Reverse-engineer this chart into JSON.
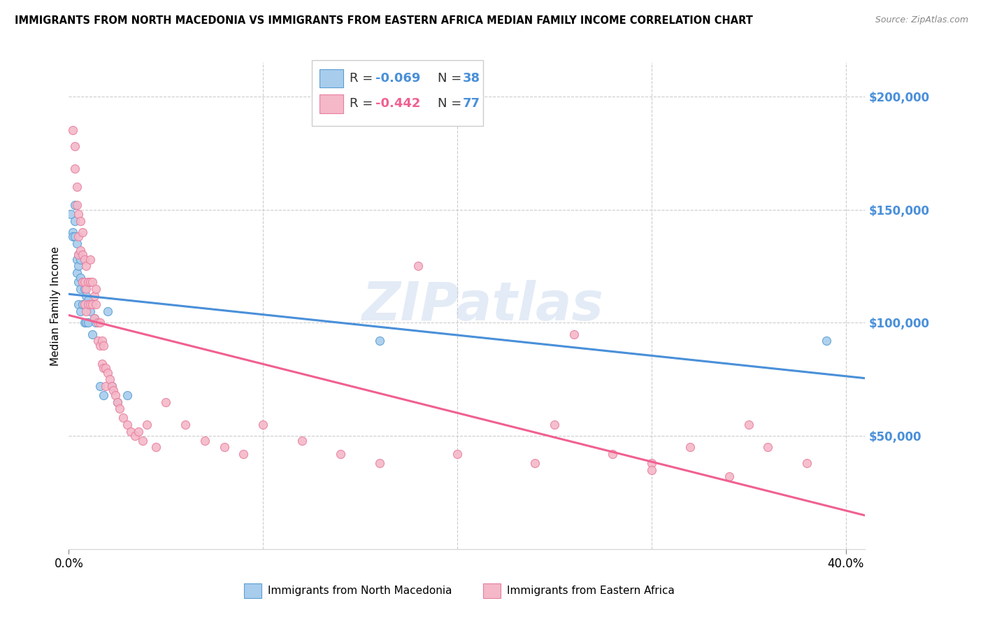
{
  "title": "IMMIGRANTS FROM NORTH MACEDONIA VS IMMIGRANTS FROM EASTERN AFRICA MEDIAN FAMILY INCOME CORRELATION CHART",
  "source": "Source: ZipAtlas.com",
  "ylabel": "Median Family Income",
  "y_tick_labels": [
    "$200,000",
    "$150,000",
    "$100,000",
    "$50,000"
  ],
  "y_tick_values": [
    200000,
    150000,
    100000,
    50000
  ],
  "y_min": 0,
  "y_max": 215000,
  "x_min": 0,
  "x_max": 0.41,
  "legend_r1": "R = -0.069",
  "legend_n1": "N = 38",
  "legend_r2": "R = -0.442",
  "legend_n2": "N = 77",
  "color_blue_fill": "#a8ccec",
  "color_blue_edge": "#5a9fd4",
  "color_blue_line": "#4a90d9",
  "color_blue_dash": "#90bce8",
  "color_pink_fill": "#f4b8c8",
  "color_pink_edge": "#e87fa0",
  "color_pink_line": "#f06090",
  "color_right_axis": "#4a90d9",
  "watermark": "ZIPatlas",
  "blue_x": [
    0.001,
    0.002,
    0.002,
    0.003,
    0.003,
    0.003,
    0.004,
    0.004,
    0.004,
    0.005,
    0.005,
    0.005,
    0.005,
    0.006,
    0.006,
    0.006,
    0.006,
    0.007,
    0.007,
    0.008,
    0.008,
    0.008,
    0.009,
    0.009,
    0.01,
    0.01,
    0.011,
    0.012,
    0.013,
    0.014,
    0.016,
    0.018,
    0.02,
    0.022,
    0.025,
    0.03,
    0.16,
    0.39
  ],
  "blue_y": [
    148000,
    140000,
    138000,
    152000,
    145000,
    138000,
    135000,
    128000,
    122000,
    130000,
    125000,
    118000,
    108000,
    128000,
    120000,
    115000,
    105000,
    118000,
    108000,
    115000,
    108000,
    100000,
    112000,
    100000,
    110000,
    100000,
    105000,
    95000,
    102000,
    100000,
    72000,
    68000,
    105000,
    72000,
    65000,
    68000,
    92000,
    92000
  ],
  "pink_x": [
    0.002,
    0.003,
    0.003,
    0.004,
    0.004,
    0.005,
    0.005,
    0.005,
    0.006,
    0.006,
    0.007,
    0.007,
    0.007,
    0.008,
    0.008,
    0.008,
    0.009,
    0.009,
    0.009,
    0.01,
    0.01,
    0.011,
    0.011,
    0.011,
    0.012,
    0.012,
    0.013,
    0.013,
    0.014,
    0.014,
    0.015,
    0.015,
    0.016,
    0.016,
    0.017,
    0.017,
    0.018,
    0.018,
    0.019,
    0.019,
    0.02,
    0.021,
    0.022,
    0.023,
    0.024,
    0.025,
    0.026,
    0.028,
    0.03,
    0.032,
    0.034,
    0.036,
    0.038,
    0.04,
    0.045,
    0.05,
    0.06,
    0.07,
    0.08,
    0.09,
    0.1,
    0.12,
    0.14,
    0.16,
    0.2,
    0.24,
    0.25,
    0.28,
    0.3,
    0.32,
    0.34,
    0.36,
    0.38,
    0.26,
    0.18,
    0.3,
    0.35
  ],
  "pink_y": [
    185000,
    178000,
    168000,
    160000,
    152000,
    148000,
    138000,
    130000,
    145000,
    132000,
    140000,
    130000,
    118000,
    128000,
    118000,
    108000,
    125000,
    115000,
    105000,
    118000,
    108000,
    128000,
    118000,
    108000,
    118000,
    108000,
    112000,
    102000,
    115000,
    108000,
    100000,
    92000,
    100000,
    90000,
    92000,
    82000,
    90000,
    80000,
    80000,
    72000,
    78000,
    75000,
    72000,
    70000,
    68000,
    65000,
    62000,
    58000,
    55000,
    52000,
    50000,
    52000,
    48000,
    55000,
    45000,
    65000,
    55000,
    48000,
    45000,
    42000,
    55000,
    48000,
    42000,
    38000,
    42000,
    38000,
    55000,
    42000,
    38000,
    45000,
    32000,
    45000,
    38000,
    95000,
    125000,
    35000,
    55000
  ]
}
